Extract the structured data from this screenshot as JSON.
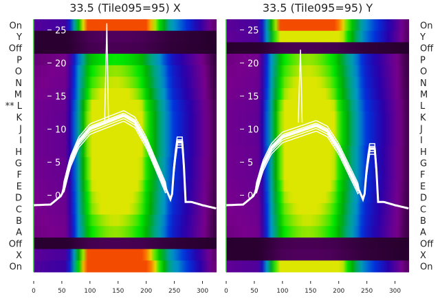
{
  "chart_data": [
    {
      "type": "heatmap",
      "title": "33.5 (Tile095=95) X",
      "row_labels": [
        "On",
        "Y",
        "Off",
        "P",
        "O",
        "N",
        "M",
        "** L",
        "K",
        "J",
        "I",
        "H",
        "G",
        "F",
        "E",
        "D",
        "C",
        "B",
        "A",
        "Off",
        "X",
        "On"
      ],
      "row_intensity": [
        0.95,
        0.12,
        0.1,
        0.55,
        0.6,
        0.62,
        0.65,
        0.7,
        0.72,
        0.72,
        0.72,
        0.72,
        0.7,
        0.7,
        0.68,
        0.66,
        0.65,
        0.62,
        0.6,
        0.1,
        0.9,
        1.0
      ],
      "xticks": [
        0,
        50,
        100,
        150,
        200,
        250,
        300
      ],
      "xlim": [
        0,
        325
      ],
      "overlay_yticks": [
        0,
        5,
        10,
        15,
        20,
        25
      ],
      "overlay_ylim": [
        -11.6,
        26.6
      ],
      "curve_peak": 12,
      "spike": {
        "x": 130,
        "y": 26
      }
    },
    {
      "type": "heatmap",
      "title": "33.5 (Tile095=95) Y",
      "row_labels": [
        "On",
        "Y",
        "Off",
        "P",
        "O",
        "N",
        "M",
        "L",
        "K",
        "J",
        "I",
        "H",
        "G",
        "F",
        "E",
        "D",
        "C",
        "B",
        "A",
        "Off",
        "X",
        "On"
      ],
      "row_intensity": [
        0.9,
        0.85,
        0.1,
        0.6,
        0.62,
        0.64,
        0.66,
        0.7,
        0.72,
        0.72,
        0.72,
        0.7,
        0.7,
        0.7,
        0.68,
        0.66,
        0.64,
        0.62,
        0.6,
        0.1,
        0.12,
        0.85
      ],
      "xticks": [
        0,
        50,
        100,
        150,
        200,
        250,
        300
      ],
      "xlim": [
        0,
        325
      ],
      "overlay_yticks": [
        0,
        5,
        10,
        15,
        20,
        25
      ],
      "overlay_ylim": [
        -11.6,
        26.6
      ],
      "curve_peak": 10.5,
      "spike": {
        "x": 132,
        "y": 22
      }
    }
  ],
  "profile": {
    "x": [
      0,
      30,
      50,
      65,
      80,
      100,
      130,
      160,
      180,
      200,
      225,
      245,
      250,
      255,
      265,
      270,
      280,
      300,
      325
    ],
    "y": [
      -1.5,
      -1.4,
      0,
      5,
      8,
      10,
      11,
      12,
      11,
      8,
      3,
      -1,
      5,
      8,
      8,
      -1,
      -1,
      -1.5,
      -2
    ]
  }
}
